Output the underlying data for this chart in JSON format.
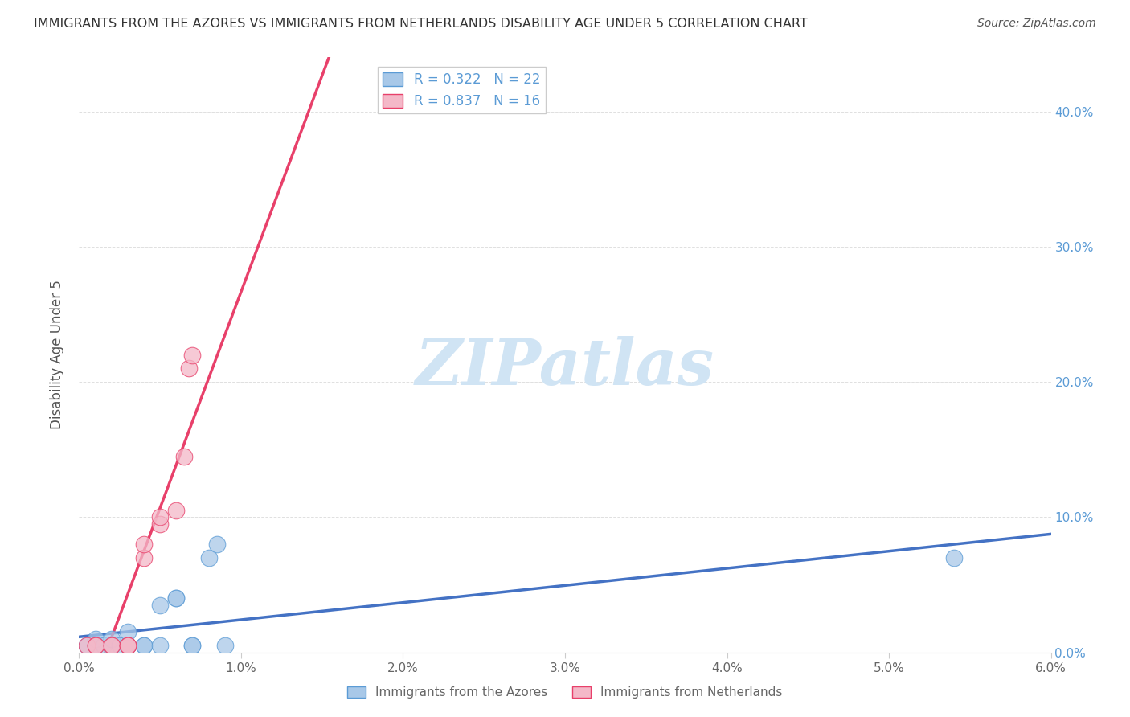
{
  "title": "IMMIGRANTS FROM THE AZORES VS IMMIGRANTS FROM NETHERLANDS DISABILITY AGE UNDER 5 CORRELATION CHART",
  "source": "Source: ZipAtlas.com",
  "ylabel": "Disability Age Under 5",
  "xlim": [
    0.0,
    0.06
  ],
  "ylim": [
    0.0,
    0.44
  ],
  "xticks": [
    0.0,
    0.01,
    0.02,
    0.03,
    0.04,
    0.05,
    0.06
  ],
  "yticks": [
    0.0,
    0.1,
    0.2,
    0.3,
    0.4
  ],
  "legend_label_azores": "R = 0.322   N = 22",
  "legend_label_netherlands": "R = 0.837   N = 16",
  "azores_x": [
    0.0005,
    0.001,
    0.001,
    0.0015,
    0.002,
    0.002,
    0.0025,
    0.003,
    0.003,
    0.003,
    0.004,
    0.004,
    0.005,
    0.005,
    0.006,
    0.006,
    0.007,
    0.007,
    0.008,
    0.0085,
    0.009,
    0.054
  ],
  "azores_y": [
    0.005,
    0.005,
    0.01,
    0.005,
    0.005,
    0.01,
    0.005,
    0.005,
    0.005,
    0.015,
    0.005,
    0.005,
    0.005,
    0.035,
    0.04,
    0.04,
    0.005,
    0.005,
    0.07,
    0.08,
    0.005,
    0.07
  ],
  "netherlands_x": [
    0.0005,
    0.001,
    0.001,
    0.002,
    0.002,
    0.003,
    0.003,
    0.003,
    0.004,
    0.004,
    0.005,
    0.005,
    0.006,
    0.0065,
    0.0068,
    0.007
  ],
  "netherlands_y": [
    0.005,
    0.005,
    0.005,
    0.005,
    0.005,
    0.005,
    0.005,
    0.005,
    0.07,
    0.08,
    0.095,
    0.1,
    0.105,
    0.145,
    0.21,
    0.22
  ],
  "azores_color": "#a8c8e8",
  "netherlands_color": "#f4b8c8",
  "azores_line_color": "#4472c4",
  "netherlands_line_color": "#e8406a",
  "azores_edge_color": "#5b9bd5",
  "netherlands_edge_color": "#e8406a",
  "watermark_text": "ZIPatlas",
  "watermark_color": "#d0e4f4",
  "background_color": "#ffffff",
  "grid_color": "#e0e0e0",
  "right_tick_color": "#5b9bd5",
  "title_color": "#333333",
  "source_color": "#555555",
  "ylabel_color": "#555555",
  "tick_label_color": "#666666"
}
